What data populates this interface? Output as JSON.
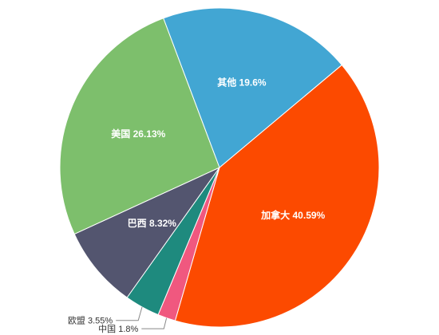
{
  "chart_data": {
    "type": "pie",
    "title": "",
    "slices": [
      {
        "label": "加拿大",
        "value": 40.59,
        "value_text": "40.59%",
        "color": "#fc4a00"
      },
      {
        "label": "中国",
        "value": 1.8,
        "value_text": "1.8%",
        "color": "#f0587f"
      },
      {
        "label": "欧盟",
        "value": 3.55,
        "value_text": "3.55%",
        "color": "#1e8a7e"
      },
      {
        "label": "巴西",
        "value": 8.32,
        "value_text": "8.32%",
        "color": "#53556f"
      },
      {
        "label": "美国",
        "value": 26.13,
        "value_text": "26.13%",
        "color": "#7dbf6c"
      },
      {
        "label": "其他",
        "value": 19.6,
        "value_text": "19.6%",
        "color": "#42a6d3"
      }
    ],
    "legend": "none"
  }
}
